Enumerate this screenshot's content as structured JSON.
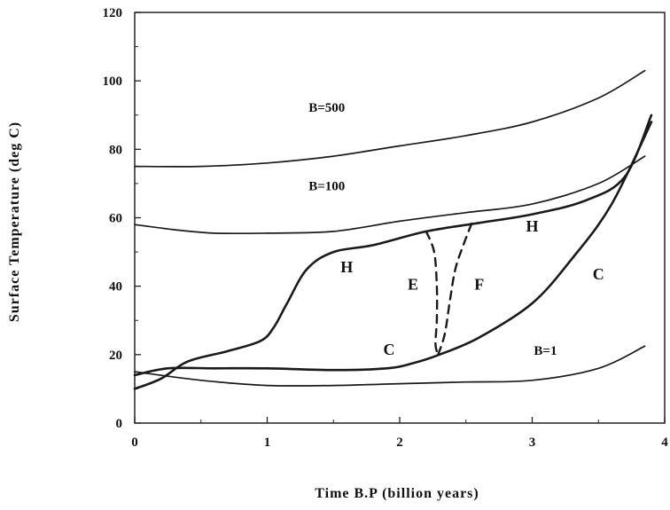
{
  "chart_data": {
    "type": "line",
    "xlabel": "Time B.P  (billion years)",
    "ylabel": "Surface Temperature  (deg  C)",
    "xlim": [
      0,
      4
    ],
    "ylim": [
      0,
      120
    ],
    "xticks": [
      "0",
      "1",
      "2",
      "3",
      "4"
    ],
    "yticks": [
      "0",
      "20",
      "40",
      "60",
      "80",
      "100",
      "120"
    ],
    "grid": false,
    "series": [
      {
        "name": "B=500",
        "x": [
          0,
          0.5,
          1.0,
          1.5,
          2.0,
          2.5,
          3.0,
          3.5,
          3.85
        ],
        "y": [
          75,
          75,
          76,
          78,
          81,
          84,
          88,
          95,
          103
        ]
      },
      {
        "name": "B=100",
        "x": [
          0,
          0.3,
          0.6,
          1.0,
          1.5,
          2.0,
          2.5,
          3.0,
          3.5,
          3.85
        ],
        "y": [
          58,
          56.5,
          55.5,
          55.5,
          56,
          59,
          61.5,
          64,
          70,
          78
        ]
      },
      {
        "name": "B=1",
        "x": [
          0,
          0.5,
          1.0,
          1.5,
          2.0,
          2.5,
          3.0,
          3.5,
          3.85
        ],
        "y": [
          15,
          12.5,
          11,
          11,
          11.5,
          12,
          12.5,
          16,
          22.5
        ]
      },
      {
        "name": "H",
        "x": [
          0,
          0.2,
          0.4,
          0.7,
          0.95,
          1.05,
          1.15,
          1.3,
          1.5,
          1.8,
          2.2,
          2.6,
          3.0,
          3.4,
          3.7,
          3.9
        ],
        "y": [
          10,
          13,
          18,
          21,
          24,
          28,
          35,
          45,
          50,
          52,
          56,
          58.5,
          61,
          65,
          72,
          90
        ]
      },
      {
        "name": "C",
        "x": [
          0,
          0.25,
          0.6,
          1.0,
          1.5,
          1.9,
          2.1,
          2.3,
          2.6,
          3.0,
          3.3,
          3.6,
          3.9
        ],
        "y": [
          14,
          16,
          16,
          16,
          15.5,
          16,
          17.5,
          20,
          25,
          35,
          48,
          64,
          88
        ]
      },
      {
        "name": "E",
        "x": [
          2.2,
          2.26,
          2.28,
          2.28,
          2.27,
          2.29
        ],
        "y": [
          56,
          50,
          40,
          30,
          23,
          20
        ],
        "style": "dashed"
      },
      {
        "name": "F",
        "x": [
          2.29,
          2.34,
          2.38,
          2.42,
          2.48,
          2.55
        ],
        "y": [
          20,
          26,
          36,
          45,
          52,
          59
        ],
        "style": "dashed"
      }
    ],
    "annotations": [
      {
        "text": "B=500",
        "x": 1.45,
        "y": 91
      },
      {
        "text": "B=100",
        "x": 1.45,
        "y": 68
      },
      {
        "text": "B=1",
        "x": 3.1,
        "y": 20
      },
      {
        "text": "H",
        "x": 1.6,
        "y": 44
      },
      {
        "text": "H",
        "x": 3.0,
        "y": 56
      },
      {
        "text": "E",
        "x": 2.1,
        "y": 39
      },
      {
        "text": "F",
        "x": 2.6,
        "y": 39
      },
      {
        "text": "C",
        "x": 1.92,
        "y": 20
      },
      {
        "text": "C",
        "x": 3.5,
        "y": 42
      }
    ]
  }
}
